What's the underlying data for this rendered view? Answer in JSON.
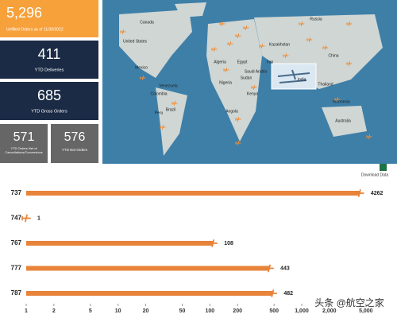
{
  "kpis": [
    {
      "value": "5,296",
      "label": "Unfilled Orders as of 11/30/2022"
    },
    {
      "value": "411",
      "label": "YTD Deliveries"
    },
    {
      "value": "685",
      "label": "YTD Gross Orders"
    },
    {
      "value": "571",
      "label": "YTD Orders Net of Cancellations/Conversions"
    },
    {
      "value": "576",
      "label": "YTD Net Orders"
    }
  ],
  "map": {
    "labels": [
      "Canada",
      "United States",
      "Mexico",
      "Venezuela",
      "Colombia",
      "Peru",
      "Brazil",
      "Algeria",
      "Egypt",
      "Nigeria",
      "Sudan",
      "Angola",
      "Kenya",
      "Saudi Arabia",
      "Iran",
      "Kazakhstan",
      "Russia",
      "China",
      "India",
      "Thailand",
      "Indonesia",
      "Australia"
    ]
  },
  "download": "Download Data",
  "watermark": "头条 @航空之家",
  "chart_data": {
    "type": "bar",
    "orientation": "horizontal",
    "xscale": "log",
    "categories": [
      "737",
      "747",
      "767",
      "777",
      "787"
    ],
    "values": [
      4262,
      1,
      108,
      443,
      482
    ],
    "color": "#e8833a",
    "xlim": [
      1,
      6000
    ],
    "xticks": [
      1,
      2,
      5,
      10,
      20,
      50,
      100,
      200,
      500,
      {
        "value": 1000,
        "label": "1,000"
      },
      {
        "value": 2000,
        "label": "2,000"
      },
      {
        "value": 5000,
        "label": "5,000"
      }
    ]
  }
}
